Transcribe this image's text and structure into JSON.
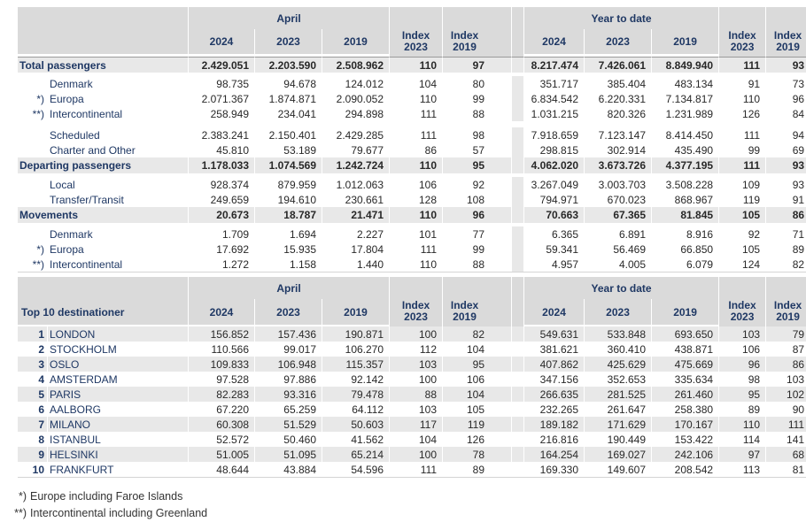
{
  "colors": {
    "header_band": "#dadada",
    "band_row": "#e8e8e8",
    "label_navy": "#1f3864",
    "number_text": "#282828"
  },
  "header": {
    "april": "April",
    "ytd": "Year to date",
    "years": {
      "y2024": "2024",
      "y2023": "2023",
      "y2019": "2019"
    },
    "index_word": "Index",
    "index_2023_year": "2023",
    "index_2019_year": "2019"
  },
  "traffic": {
    "rows": [
      {
        "type": "total",
        "marker": "",
        "label": "Total passengers",
        "values": [
          "2.429.051",
          "2.203.590",
          "2.508.962",
          "110",
          "97",
          "8.217.474",
          "7.426.061",
          "8.849.940",
          "111",
          "93"
        ]
      },
      {
        "type": "gap"
      },
      {
        "type": "data",
        "marker": "",
        "label": "Denmark",
        "values": [
          "98.735",
          "94.678",
          "124.012",
          "104",
          "80",
          "351.717",
          "385.404",
          "483.134",
          "91",
          "73"
        ]
      },
      {
        "type": "data",
        "marker": "*)",
        "label": "Europa",
        "values": [
          "2.071.367",
          "1.874.871",
          "2.090.052",
          "110",
          "99",
          "6.834.542",
          "6.220.331",
          "7.134.817",
          "110",
          "96"
        ]
      },
      {
        "type": "data",
        "marker": "**)",
        "label": "Intercontinental",
        "values": [
          "258.949",
          "234.041",
          "294.898",
          "111",
          "88",
          "1.031.215",
          "820.326",
          "1.231.989",
          "126",
          "84"
        ]
      },
      {
        "type": "gap_large"
      },
      {
        "type": "data",
        "marker": "",
        "label": "Scheduled",
        "values": [
          "2.383.241",
          "2.150.401",
          "2.429.285",
          "111",
          "98",
          "7.918.659",
          "7.123.147",
          "8.414.450",
          "111",
          "94"
        ]
      },
      {
        "type": "data",
        "marker": "",
        "label": "Charter and Other",
        "values": [
          "45.810",
          "53.189",
          "79.677",
          "86",
          "57",
          "298.815",
          "302.914",
          "435.490",
          "99",
          "69"
        ]
      },
      {
        "type": "total",
        "marker": "",
        "label": "Departing passengers",
        "values": [
          "1.178.033",
          "1.074.569",
          "1.242.724",
          "110",
          "95",
          "4.062.020",
          "3.673.726",
          "4.377.195",
          "111",
          "93"
        ]
      },
      {
        "type": "gap"
      },
      {
        "type": "data",
        "marker": "",
        "label": "Local",
        "values": [
          "928.374",
          "879.959",
          "1.012.063",
          "106",
          "92",
          "3.267.049",
          "3.003.703",
          "3.508.228",
          "109",
          "93"
        ]
      },
      {
        "type": "data",
        "marker": "",
        "label": "Transfer/Transit",
        "values": [
          "249.659",
          "194.610",
          "230.661",
          "128",
          "108",
          "794.971",
          "670.023",
          "868.967",
          "119",
          "91"
        ]
      },
      {
        "type": "total",
        "marker": "",
        "label": "Movements",
        "values": [
          "20.673",
          "18.787",
          "21.471",
          "110",
          "96",
          "70.663",
          "67.365",
          "81.845",
          "105",
          "86"
        ]
      },
      {
        "type": "gap"
      },
      {
        "type": "data",
        "marker": "",
        "label": "Denmark",
        "values": [
          "1.709",
          "1.694",
          "2.227",
          "101",
          "77",
          "6.365",
          "6.891",
          "8.916",
          "92",
          "71"
        ]
      },
      {
        "type": "data",
        "marker": "*)",
        "label": "Europa",
        "values": [
          "17.692",
          "15.935",
          "17.804",
          "111",
          "99",
          "59.341",
          "56.469",
          "66.850",
          "105",
          "89"
        ]
      },
      {
        "type": "data",
        "marker": "**)",
        "label": "Intercontinental",
        "values": [
          "1.272",
          "1.158",
          "1.440",
          "110",
          "88",
          "4.957",
          "4.005",
          "6.079",
          "124",
          "82"
        ]
      }
    ]
  },
  "top10": {
    "title": "Top 10 destinationer",
    "rows": [
      {
        "rank": "1",
        "city": "LONDON",
        "values": [
          "156.852",
          "157.436",
          "190.871",
          "100",
          "82",
          "549.631",
          "533.848",
          "693.650",
          "103",
          "79"
        ]
      },
      {
        "rank": "2",
        "city": "STOCKHOLM",
        "values": [
          "110.566",
          "99.017",
          "106.270",
          "112",
          "104",
          "381.621",
          "360.410",
          "438.871",
          "106",
          "87"
        ]
      },
      {
        "rank": "3",
        "city": "OSLO",
        "values": [
          "109.833",
          "106.948",
          "115.357",
          "103",
          "95",
          "407.862",
          "425.629",
          "475.669",
          "96",
          "86"
        ]
      },
      {
        "rank": "4",
        "city": "AMSTERDAM",
        "values": [
          "97.528",
          "97.886",
          "92.142",
          "100",
          "106",
          "347.156",
          "352.653",
          "335.634",
          "98",
          "103"
        ]
      },
      {
        "rank": "5",
        "city": "PARIS",
        "values": [
          "82.283",
          "93.316",
          "79.478",
          "88",
          "104",
          "266.635",
          "281.525",
          "261.460",
          "95",
          "102"
        ]
      },
      {
        "rank": "6",
        "city": "AALBORG",
        "values": [
          "67.220",
          "65.259",
          "64.112",
          "103",
          "105",
          "232.265",
          "261.647",
          "258.380",
          "89",
          "90"
        ]
      },
      {
        "rank": "7",
        "city": "MILANO",
        "values": [
          "60.308",
          "51.529",
          "50.603",
          "117",
          "119",
          "189.182",
          "171.629",
          "170.167",
          "110",
          "111"
        ]
      },
      {
        "rank": "8",
        "city": "ISTANBUL",
        "values": [
          "52.572",
          "50.460",
          "41.562",
          "104",
          "126",
          "216.816",
          "190.449",
          "153.422",
          "114",
          "141"
        ]
      },
      {
        "rank": "9",
        "city": "HELSINKI",
        "values": [
          "51.005",
          "51.095",
          "65.214",
          "100",
          "78",
          "164.254",
          "169.027",
          "242.106",
          "97",
          "68"
        ]
      },
      {
        "rank": "10",
        "city": "FRANKFURT",
        "values": [
          "48.644",
          "43.884",
          "54.596",
          "111",
          "89",
          "169.330",
          "149.607",
          "208.542",
          "113",
          "81"
        ]
      }
    ]
  },
  "footnotes": [
    {
      "marker": "*)",
      "text": "Europe including Faroe Islands"
    },
    {
      "marker": "**)",
      "text": "Intercontinental including Greenland"
    }
  ]
}
